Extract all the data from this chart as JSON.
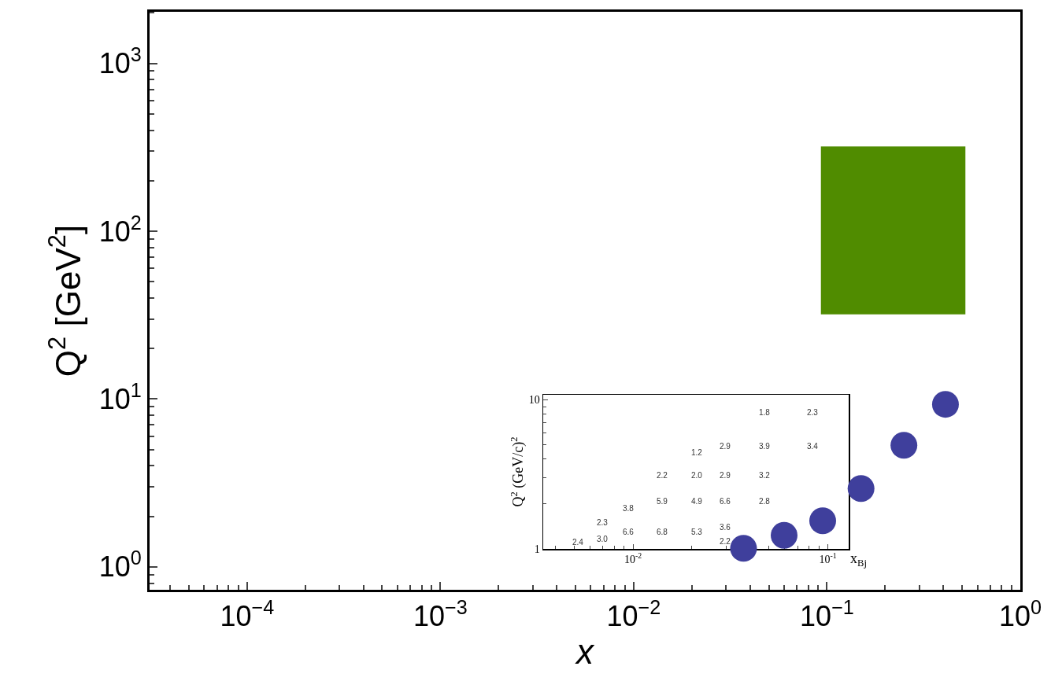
{
  "chart_data": [
    {
      "type": "scatter",
      "xlabel": "x",
      "ylabel": "Q$^{2}$ [GeV$^{2}$]",
      "log": "xy",
      "grid": false,
      "xlim": [
        3.13e-05,
        1
      ],
      "ylim": [
        0.73,
        2030
      ],
      "xticks": [
        {
          "value": 0.0001,
          "label": "10$^{−4}$"
        },
        {
          "value": 0.001,
          "label": "10$^{−3}$"
        },
        {
          "value": 0.01,
          "label": "10$^{−2}$"
        },
        {
          "value": 0.1,
          "label": "10$^{−1}$"
        },
        {
          "value": 1,
          "label": "10$^{0}$"
        }
      ],
      "yticks": [
        {
          "value": 1,
          "label": "10$^{0}$"
        },
        {
          "value": 10,
          "label": "10$^{1}$"
        },
        {
          "value": 100,
          "label": "10$^{2}$"
        },
        {
          "value": 1000,
          "label": "10$^{3}$"
        }
      ],
      "series": [
        {
          "type": "line",
          "color": "#508c00",
          "x": [
            0.093,
            0.52
          ],
          "values": [
            null,
            null
          ],
          "lower": [
            32,
            32
          ],
          "upper": [
            320,
            320
          ]
        },
        {
          "marker": "circle",
          "color": "#3f3f9c",
          "x": [
            0.037,
            0.06,
            0.095,
            0.15,
            0.25,
            0.41
          ],
          "values": [
            1.29,
            1.54,
            1.88,
            2.93,
            5.3,
            9.3
          ]
        }
      ]
    },
    {
      "type": "scatter",
      "xlabel": "x$_{Bj}$",
      "ylabel": "Q$^{2}$ (GeV/c)$^{2}$",
      "log": "xy",
      "xlim": [
        0.00346,
        0.128
      ],
      "ylim": [
        1,
        10.8
      ],
      "xticks": [
        {
          "value": 0.01,
          "label": "10$^{-2}$"
        },
        {
          "value": 0.1,
          "label": "10$^{-1}$"
        }
      ],
      "yticks": [
        1,
        10
      ],
      "annotations": [
        "2.4",
        "3.0",
        "2.3",
        "6.6",
        "3.8",
        "6.8",
        "5.9",
        "2.2",
        "5.3",
        "4.9",
        "2.0",
        "1.2",
        "2.2",
        "3.6",
        "6.6",
        "2.9",
        "2.9",
        "2.8",
        "3.2",
        "3.9",
        "1.8",
        "3.4",
        "2.3"
      ]
    }
  ]
}
